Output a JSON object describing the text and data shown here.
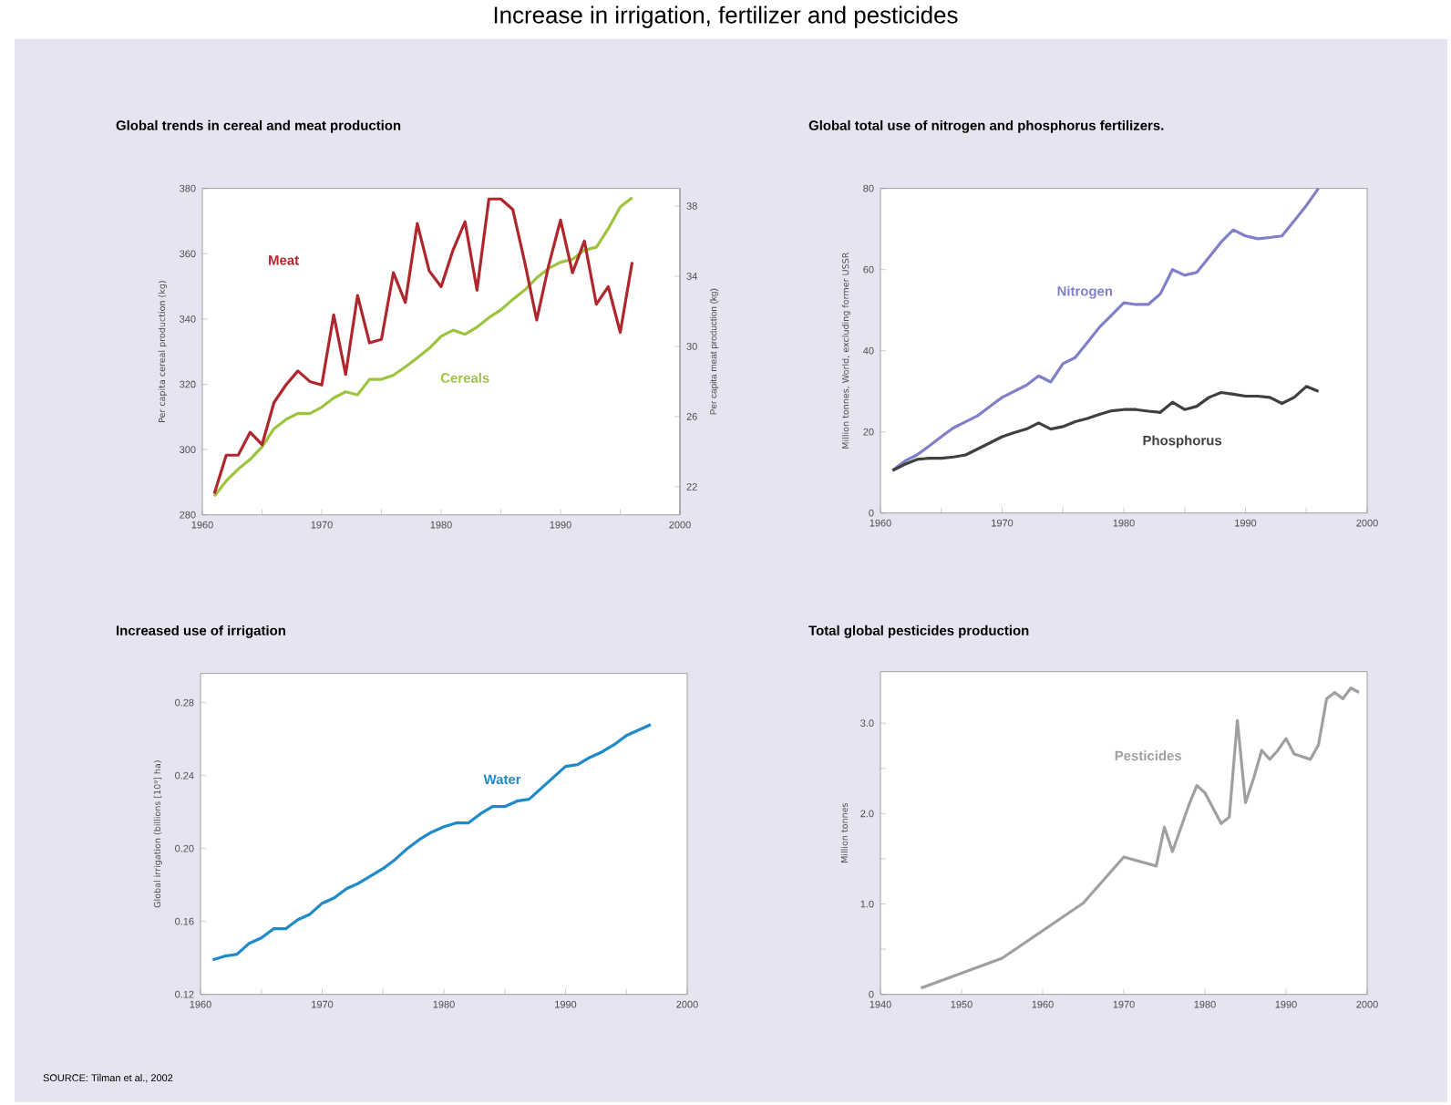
{
  "chart_data": [
    {
      "type": "line",
      "title": "Global trends in cereal and meat production",
      "ylabel": "Per capita cereal production (kg)",
      "y2label": "Per capita meat production (kg)",
      "annotations": [
        "Increase in irrigation, fertilizer and pesticides"
      ],
      "x": [
        1961,
        1962,
        1963,
        1964,
        1965,
        1966,
        1967,
        1968,
        1969,
        1970,
        1971,
        1972,
        1973,
        1974,
        1975,
        1976,
        1977,
        1978,
        1979,
        1980,
        1981,
        1982,
        1983,
        1984,
        1985,
        1986,
        1987,
        1988,
        1989,
        1990,
        1991,
        1992,
        1993,
        1994,
        1995,
        1996
      ],
      "series": [
        {
          "name": "Cereals",
          "color": "#9dc43f",
          "values": [
            285.7,
            290.4,
            294,
            297,
            300.8,
            306.4,
            309.2,
            311.1,
            311,
            313,
            315.8,
            317.7,
            316.8,
            321.5,
            321.5,
            322.8,
            325.3,
            328.1,
            331,
            334.7,
            336.6,
            335.3,
            337.5,
            340.4,
            342.8,
            346,
            348.9,
            352.6,
            355.5,
            357.4,
            358.3,
            361.1,
            362,
            367.7,
            374.3,
            377.2
          ]
        },
        {
          "name": "Meat",
          "color": "#b0262c",
          "axis": "y2",
          "values": [
            21.6,
            23.8,
            23.8,
            25.1,
            24.4,
            26.8,
            27.8,
            28.6,
            28,
            27.8,
            31.8,
            28.4,
            32.9,
            30.2,
            30.4,
            34.2,
            32.5,
            37,
            34.3,
            33.4,
            35.5,
            37.1,
            33.2,
            38.4,
            38.4,
            37.8,
            34.8,
            31.5,
            34.6,
            37.2,
            34.2,
            36,
            32.4,
            33.4,
            30.8,
            34.8
          ]
        }
      ],
      "xlim": [
        1960,
        2000
      ],
      "ylim": [
        280,
        380
      ],
      "y2lim": [
        20.4,
        39
      ],
      "xticks": [
        1960,
        {
          "value": 1965,
          "label": null
        },
        1970,
        {
          "value": 1975,
          "label": null
        },
        1980,
        {
          "value": 1985,
          "label": null
        },
        1990,
        {
          "value": 1995,
          "label": null
        },
        2000
      ],
      "yticks": [
        280,
        300,
        320,
        340,
        360,
        380
      ],
      "y2ticks": [
        22,
        26,
        30,
        34,
        38
      ]
    },
    {
      "type": "line",
      "title": "Global total use of nitrogen and phosphorus fertilizers.",
      "ylabel": "Million tonnes, World, excluding former USSR",
      "x": [
        1961,
        1962,
        1963,
        1964,
        1965,
        1966,
        1967,
        1968,
        1969,
        1970,
        1971,
        1972,
        1973,
        1974,
        1975,
        1976,
        1977,
        1978,
        1979,
        1980,
        1981,
        1982,
        1983,
        1984,
        1985,
        1986,
        1987,
        1988,
        1989,
        1990,
        1991,
        1992,
        1993,
        1994,
        1995,
        1996
      ],
      "series": [
        {
          "name": "Nitrogen",
          "color": "#8080c8",
          "values": [
            10.5,
            12.8,
            14.3,
            16.5,
            18.8,
            21,
            22.5,
            24,
            26.3,
            28.5,
            30,
            31.5,
            33.8,
            32.3,
            36.8,
            38.3,
            42,
            45.8,
            48.8,
            51.8,
            51.4,
            51.4,
            54,
            60,
            58.6,
            59.3,
            63,
            66.8,
            69.8,
            68.3,
            67.6,
            67.9,
            68.3,
            72,
            75.8,
            80
          ]
        },
        {
          "name": "Phosphorus",
          "color": "#404040",
          "values": [
            10.5,
            12,
            13.2,
            13.5,
            13.5,
            13.8,
            14.3,
            15.8,
            17.3,
            18.8,
            19.8,
            20.7,
            22.2,
            20.7,
            21.3,
            22.5,
            23.3,
            24.3,
            25.2,
            25.5,
            25.5,
            25.1,
            24.8,
            27.3,
            25.5,
            26.3,
            28.5,
            29.7,
            29.3,
            28.8,
            28.8,
            28.5,
            27,
            28.5,
            31.2,
            30
          ]
        }
      ],
      "xlim": [
        1960,
        2000
      ],
      "ylim": [
        0,
        80
      ],
      "xticks": [
        1960,
        {
          "value": 1965,
          "label": null
        },
        1970,
        {
          "value": 1975,
          "label": null
        },
        1980,
        {
          "value": 1985,
          "label": null
        },
        1990,
        {
          "value": 1995,
          "label": null
        },
        2000
      ],
      "yticks": [
        0,
        20,
        40,
        60,
        80
      ]
    },
    {
      "type": "line",
      "title": "Increased use of irrigation",
      "ylabel": "Global irrigation (billions [10⁹] ha)",
      "annotations": [
        "SOURCE: Tilman et al., 2002"
      ],
      "x": [
        1961,
        1962,
        1963,
        1964,
        1965,
        1966,
        1967,
        1968,
        1969,
        1970,
        1971,
        1972,
        1973,
        1974,
        1975,
        1976,
        1977,
        1978,
        1979,
        1980,
        1981,
        1982,
        1983,
        1984,
        1985,
        1986,
        1987,
        1988,
        1989,
        1990,
        1991,
        1992,
        1993,
        1994,
        1995,
        1996,
        1997
      ],
      "series": [
        {
          "name": "Water",
          "color": "#1e8ac8",
          "values": [
            0.139,
            0.141,
            0.142,
            0.148,
            0.151,
            0.156,
            0.156,
            0.161,
            0.164,
            0.17,
            0.173,
            0.178,
            0.181,
            0.185,
            0.189,
            0.194,
            0.2,
            0.205,
            0.209,
            0.212,
            0.214,
            0.214,
            0.219,
            0.223,
            0.223,
            0.226,
            0.227,
            0.233,
            0.239,
            0.245,
            0.246,
            0.25,
            0.253,
            0.257,
            0.262,
            0.265,
            0.268
          ]
        }
      ],
      "xlim": [
        1960,
        2000
      ],
      "ylim": [
        0.12,
        0.296
      ],
      "xticks": [
        1960,
        {
          "value": 1965,
          "label": null
        },
        1970,
        {
          "value": 1975,
          "label": null
        },
        1980,
        {
          "value": 1985,
          "label": null
        },
        1990,
        {
          "value": 1995,
          "label": null
        },
        2000
      ],
      "yticks": [
        {
          "value": 0.12,
          "label": "0.12"
        },
        {
          "value": 0.16,
          "label": "0.16"
        },
        {
          "value": 0.2,
          "label": "0.20"
        },
        {
          "value": 0.24,
          "label": "0.24"
        },
        {
          "value": 0.28,
          "label": "0.28"
        }
      ]
    },
    {
      "type": "line",
      "title": "Total global pesticides production",
      "ylabel": "Million tonnes",
      "x": [
        1945,
        1955,
        1965,
        1970,
        1974,
        1975,
        1976,
        1978,
        1979,
        1980,
        1982,
        1983,
        1984,
        1985,
        1986,
        1987,
        1988,
        1989,
        1990,
        1991,
        1993,
        1994,
        1995,
        1996,
        1997,
        1998,
        1999
      ],
      "series": [
        {
          "name": "Pesticides",
          "color": "#a0a0a0",
          "values": [
            0.07,
            0.4,
            1.01,
            1.52,
            1.42,
            1.85,
            1.58,
            2.09,
            2.31,
            2.23,
            1.89,
            1.96,
            3.03,
            2.12,
            2.39,
            2.7,
            2.6,
            2.7,
            2.83,
            2.66,
            2.6,
            2.76,
            3.27,
            3.34,
            3.27,
            3.39,
            3.34
          ]
        }
      ],
      "xlim": [
        1940,
        2000
      ],
      "ylim": [
        0,
        3.57
      ],
      "xticks": [
        1940,
        1950,
        1960,
        1970,
        1980,
        1990,
        2000
      ],
      "yticks": [
        0,
        {
          "value": 0.5,
          "label": null
        },
        {
          "value": 1,
          "label": "1.0"
        },
        {
          "value": 1.5,
          "label": null
        },
        {
          "value": 2,
          "label": "2.0"
        },
        {
          "value": 2.5,
          "label": null
        },
        {
          "value": 3,
          "label": "3.0"
        }
      ]
    }
  ]
}
